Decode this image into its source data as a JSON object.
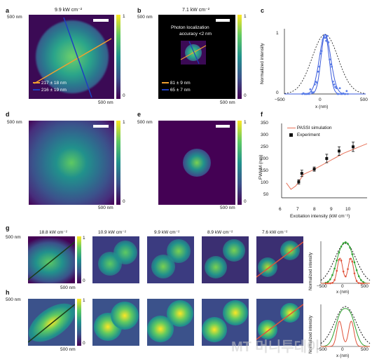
{
  "panels": {
    "a": {
      "label": "a",
      "title": "9.9 kW cm⁻²",
      "y_label": "500 nm",
      "x_label": "500 nm",
      "cbar_top": "1",
      "cbar_bottom": "0",
      "legend": [
        {
          "text": "217 ± 18 nm",
          "color": "#f0a030"
        },
        {
          "text": "216 ± 19 nm",
          "color": "#1f3fbf"
        }
      ]
    },
    "b": {
      "label": "b",
      "title": "7.1 kW cm⁻²",
      "y_label": "500 nm",
      "x_label": "500 nm",
      "cbar_top": "1",
      "cbar_bottom": "0",
      "annotation_line1": "Photon localization",
      "annotation_line2": "accuracy <2 nm",
      "legend": [
        {
          "text": "81 ± 9 nm",
          "color": "#f0a030"
        },
        {
          "text": "65 ± 7 nm",
          "color": "#1f3fbf"
        }
      ]
    },
    "c": {
      "label": "c",
      "ylabel": "Normalized intensity",
      "xlabel": "x (nm)",
      "yticks": [
        "1",
        "0"
      ],
      "xticks": [
        "−500",
        "0",
        "500"
      ]
    },
    "d": {
      "label": "d",
      "y_label": "500 nm",
      "x_label": "500 nm",
      "cbar_top": "1",
      "cbar_bottom": "0"
    },
    "e": {
      "label": "e",
      "y_label": "500 nm",
      "x_label": "500 nm",
      "cbar_top": "1",
      "cbar_bottom": "0"
    },
    "f": {
      "label": "f",
      "ylabel": "FWHM (nm)",
      "xlabel": "Excitation intensity (kW cm⁻²)",
      "legend_sim": "PASSI simulation",
      "legend_exp": "Experiment",
      "yticks": [
        "350",
        "300",
        "250",
        "200",
        "150",
        "100",
        "50"
      ],
      "xticks": [
        "6",
        "7",
        "8",
        "9",
        "10"
      ]
    },
    "g": {
      "label": "g",
      "y_label": "500 nm",
      "x_label": "500 nm",
      "cbar_top": "1",
      "cbar_bottom": "0",
      "titles": [
        "18.8 kW cm⁻²",
        "10.9 kW cm⁻²",
        "9.9 kW cm⁻²",
        "8.9 kW cm⁻²",
        "7.6 kW cm⁻²"
      ],
      "plot_ylabel": "Normalized intensity",
      "plot_xlabel": "x (nm)",
      "plot_xticks": [
        "−500",
        "0",
        "500"
      ]
    },
    "h": {
      "label": "h",
      "y_label": "500 nm",
      "x_label": "500 nm",
      "cbar_top": "1",
      "cbar_bottom": "0",
      "plot_ylabel": "Normalized intensity",
      "plot_xlabel": "x (nm)",
      "plot_xticks": [
        "−500",
        "0",
        "500"
      ]
    }
  },
  "chart_data": [
    {
      "type": "scatter",
      "panel": "c",
      "xlabel": "x (nm)",
      "ylabel": "Normalized intensity",
      "xlim": [
        -500,
        500
      ],
      "ylim": [
        0,
        1.1
      ],
      "series": [
        {
          "style": "dashed-black"
        },
        {
          "style": "blue-points-fit"
        }
      ]
    },
    {
      "type": "scatter",
      "panel": "f",
      "xlabel": "Excitation intensity (kW cm⁻²)",
      "ylabel": "FWHM (nm)",
      "xlim": [
        6,
        11.5
      ],
      "ylim": [
        0,
        350
      ],
      "series": [
        {
          "name": "PASSI simulation",
          "type": "line",
          "x": [
            6.3,
            6.6,
            6.9,
            7.1,
            7.4,
            8,
            8.5,
            9,
            9.5,
            10,
            10.5,
            11,
            11.5
          ],
          "y": [
            70,
            40,
            55,
            75,
            110,
            130,
            150,
            170,
            190,
            210,
            225,
            240,
            255
          ]
        },
        {
          "name": "Experiment",
          "type": "scatter",
          "x": [
            7.1,
            7.3,
            8.1,
            8.9,
            9.7,
            10.6
          ],
          "y": [
            75,
            115,
            135,
            185,
            220,
            240
          ],
          "err": [
            10,
            15,
            10,
            20,
            20,
            22
          ]
        }
      ]
    }
  ],
  "watermark": "MT 머니투데이"
}
